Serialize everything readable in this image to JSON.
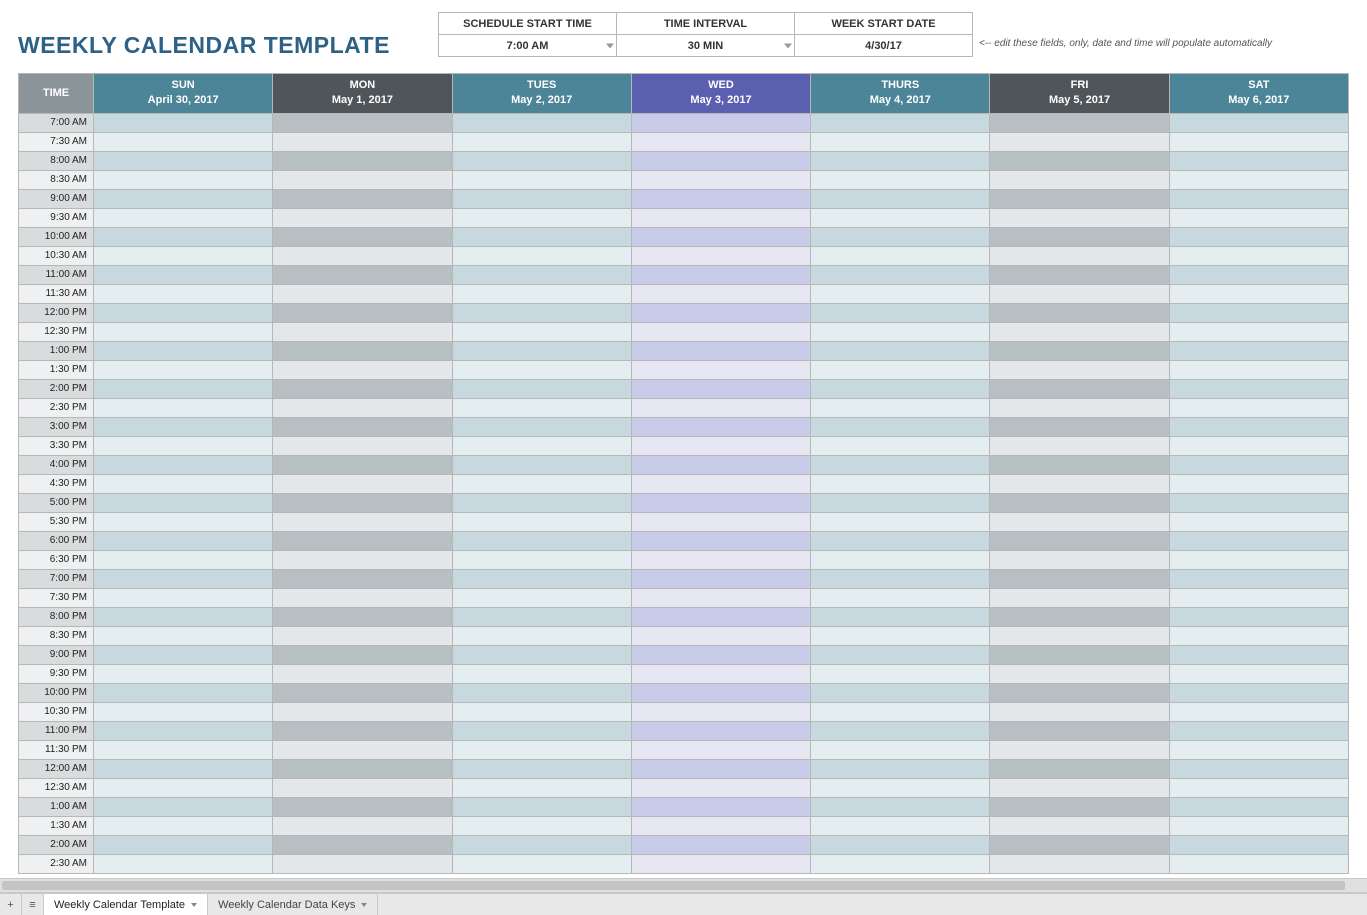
{
  "title": "WEEKLY CALENDAR TEMPLATE",
  "title_color": "#2d6186",
  "controls": {
    "headers": [
      "SCHEDULE START TIME",
      "TIME INTERVAL",
      "WEEK START DATE"
    ],
    "values": [
      "7:00 AM",
      "30 MIN",
      "4/30/17"
    ],
    "dropdown_flags": [
      true,
      true,
      false
    ]
  },
  "hint_text": "<-- edit these fields, only, date and time will populate automatically",
  "time_header_label": "TIME",
  "time_header_bg": "#8a9499",
  "days": [
    {
      "name": "SUN",
      "date": "April 30, 2017",
      "header_bg": "#4c8597",
      "row_odd": "#c7d9de",
      "row_even": "#e4eef1"
    },
    {
      "name": "MON",
      "date": "May 1, 2017",
      "header_bg": "#4f5559",
      "row_odd": "#b7bfc3",
      "row_even": "#e4e7e9"
    },
    {
      "name": "TUES",
      "date": "May 2, 2017",
      "header_bg": "#4c8597",
      "row_odd": "#c7d9de",
      "row_even": "#e4eef1"
    },
    {
      "name": "WED",
      "date": "May 3, 2017",
      "header_bg": "#5a5fb0",
      "row_odd": "#c9cce8",
      "row_even": "#e6e7f3"
    },
    {
      "name": "THURS",
      "date": "May 4, 2017",
      "header_bg": "#4c8597",
      "row_odd": "#c7d9de",
      "row_even": "#e4eef1"
    },
    {
      "name": "FRI",
      "date": "May 5, 2017",
      "header_bg": "#4f5559",
      "row_odd": "#b7bfc3",
      "row_even": "#e4e7e9"
    },
    {
      "name": "SAT",
      "date": "May 6, 2017",
      "header_bg": "#4c8597",
      "row_odd": "#c7d9de",
      "row_even": "#e4eef1"
    }
  ],
  "time_col": {
    "row_odd": "#d9dcdd",
    "row_even": "#eef0f1"
  },
  "times": [
    "7:00 AM",
    "7:30 AM",
    "8:00 AM",
    "8:30 AM",
    "9:00 AM",
    "9:30 AM",
    "10:00 AM",
    "10:30 AM",
    "11:00 AM",
    "11:30 AM",
    "12:00 PM",
    "12:30 PM",
    "1:00 PM",
    "1:30 PM",
    "2:00 PM",
    "2:30 PM",
    "3:00 PM",
    "3:30 PM",
    "4:00 PM",
    "4:30 PM",
    "5:00 PM",
    "5:30 PM",
    "6:00 PM",
    "6:30 PM",
    "7:00 PM",
    "7:30 PM",
    "8:00 PM",
    "8:30 PM",
    "9:00 PM",
    "9:30 PM",
    "10:00 PM",
    "10:30 PM",
    "11:00 PM",
    "11:30 PM",
    "12:00 AM",
    "12:30 AM",
    "1:00 AM",
    "1:30 AM",
    "2:00 AM",
    "2:30 AM"
  ],
  "border_color": "#b7b7b7",
  "tabs": {
    "items": [
      "Weekly Calendar Template",
      "Weekly Calendar Data Keys"
    ],
    "active_index": 0
  },
  "icons": {
    "add": "+",
    "menu": "≡"
  }
}
